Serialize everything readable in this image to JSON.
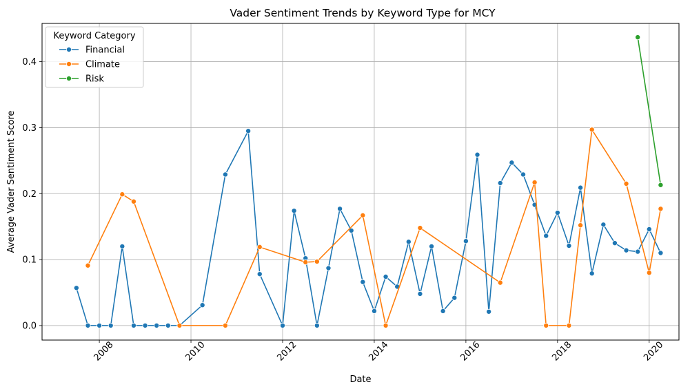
{
  "chart_data": {
    "type": "line",
    "title": "Vader Sentiment Trends by Keyword Type for MCY",
    "xlabel": "Date",
    "ylabel": "Average Vader Sentiment Score",
    "xlim": [
      2006.75,
      2020.65
    ],
    "ylim": [
      -0.022,
      0.458
    ],
    "x_ticks": [
      2008,
      2010,
      2012,
      2014,
      2016,
      2018,
      2020
    ],
    "y_ticks": [
      0.0,
      0.1,
      0.2,
      0.3,
      0.4
    ],
    "y_tick_labels": [
      "0.0",
      "0.1",
      "0.2",
      "0.3",
      "0.4"
    ],
    "grid": true,
    "legend": {
      "title": "Keyword Category",
      "placement": "top-left"
    },
    "series": [
      {
        "name": "Financial",
        "color": "#1f77b4",
        "points": [
          [
            2007.5,
            0.057
          ],
          [
            2007.75,
            0.0
          ],
          [
            2008.0,
            0.0
          ],
          [
            2008.25,
            0.0
          ],
          [
            2008.5,
            0.12
          ],
          [
            2008.75,
            0.0
          ],
          [
            2009.0,
            0.0
          ],
          [
            2009.25,
            0.0
          ],
          [
            2009.5,
            0.0
          ],
          [
            2009.75,
            0.0
          ],
          [
            2010.25,
            0.031
          ],
          [
            2010.75,
            0.229
          ],
          [
            2011.25,
            0.295
          ],
          [
            2011.5,
            0.078
          ],
          [
            2012.0,
            0.0
          ],
          [
            2012.25,
            0.174
          ],
          [
            2012.5,
            0.102
          ],
          [
            2012.75,
            0.0
          ],
          [
            2013.0,
            0.087
          ],
          [
            2013.25,
            0.177
          ],
          [
            2013.5,
            0.144
          ],
          [
            2013.75,
            0.066
          ],
          [
            2014.0,
            0.022
          ],
          [
            2014.25,
            0.074
          ],
          [
            2014.5,
            0.059
          ],
          [
            2014.75,
            0.127
          ],
          [
            2015.0,
            0.048
          ],
          [
            2015.25,
            0.12
          ],
          [
            2015.5,
            0.022
          ],
          [
            2015.75,
            0.042
          ],
          [
            2016.0,
            0.128
          ],
          [
            2016.25,
            0.259
          ],
          [
            2016.5,
            0.021
          ],
          [
            2016.75,
            0.216
          ],
          [
            2017.0,
            0.247
          ],
          [
            2017.25,
            0.229
          ],
          [
            2017.5,
            0.183
          ],
          [
            2017.75,
            0.136
          ],
          [
            2018.0,
            0.171
          ],
          [
            2018.25,
            0.121
          ],
          [
            2018.5,
            0.209
          ],
          [
            2018.75,
            0.079
          ],
          [
            2019.0,
            0.153
          ],
          [
            2019.25,
            0.125
          ],
          [
            2019.5,
            0.114
          ],
          [
            2019.75,
            0.112
          ],
          [
            2020.0,
            0.146
          ],
          [
            2020.25,
            0.11
          ]
        ]
      },
      {
        "name": "Climate",
        "color": "#ff7f0e",
        "points": [
          [
            2007.75,
            0.091
          ],
          [
            2008.5,
            0.199
          ],
          [
            2008.75,
            0.188
          ],
          [
            2009.75,
            0.0
          ],
          [
            2010.75,
            0.0
          ],
          [
            2011.5,
            0.119
          ],
          [
            2012.5,
            0.096
          ],
          [
            2012.75,
            0.097
          ],
          [
            2013.75,
            0.167
          ],
          [
            2014.25,
            0.0
          ],
          [
            2015.0,
            0.148
          ],
          [
            2016.75,
            0.065
          ],
          [
            2017.5,
            0.217
          ],
          [
            2017.75,
            0.0
          ],
          [
            2018.25,
            0.0
          ],
          [
            2018.5,
            0.152
          ],
          [
            2018.75,
            0.297
          ],
          [
            2019.5,
            0.215
          ],
          [
            2020.0,
            0.08
          ],
          [
            2020.25,
            0.177
          ]
        ]
      },
      {
        "name": "Risk",
        "color": "#2ca02c",
        "points": [
          [
            2019.75,
            0.437
          ],
          [
            2020.25,
            0.213
          ]
        ]
      }
    ]
  }
}
